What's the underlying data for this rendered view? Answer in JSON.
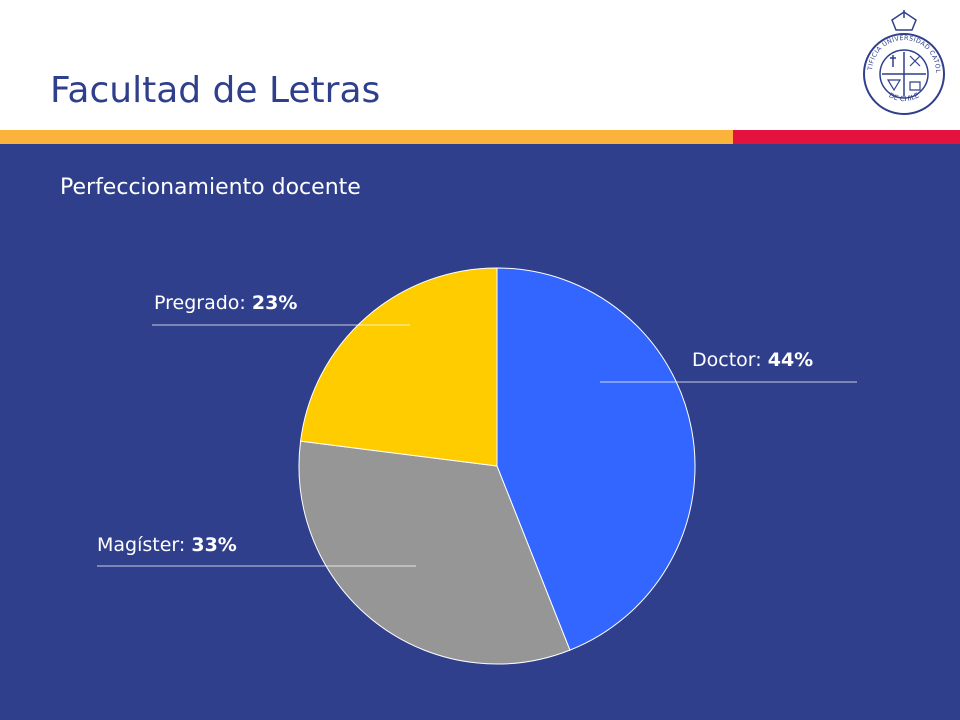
{
  "slide": {
    "title": "Facultad de Letras",
    "subtitle": "Perfeccionamiento docente",
    "colors": {
      "title": "#2f3f8c",
      "background": "#2f3f8c",
      "stripe_yellow": "#fbb33c",
      "stripe_red": "#e3133d",
      "logo": "#2f3f8c"
    },
    "logo": {
      "icon": "university-seal-icon",
      "text_top": "PONTIFICIA UNIVERSIDAD CATÓLICA",
      "text_bottom": "DE CHILE"
    }
  },
  "chart_data": {
    "type": "pie",
    "title": "",
    "slices": [
      {
        "label": "Doctor",
        "value": 44,
        "display": "44%",
        "color": "#3366ff"
      },
      {
        "label": "Magíster",
        "value": 33,
        "display": "33%",
        "color": "#969696"
      },
      {
        "label": "Pregrado",
        "value": 23,
        "display": "23%",
        "color": "#ffcc00"
      }
    ],
    "start": "12 o'clock, clockwise",
    "legend": "none (labels beside slices)"
  }
}
